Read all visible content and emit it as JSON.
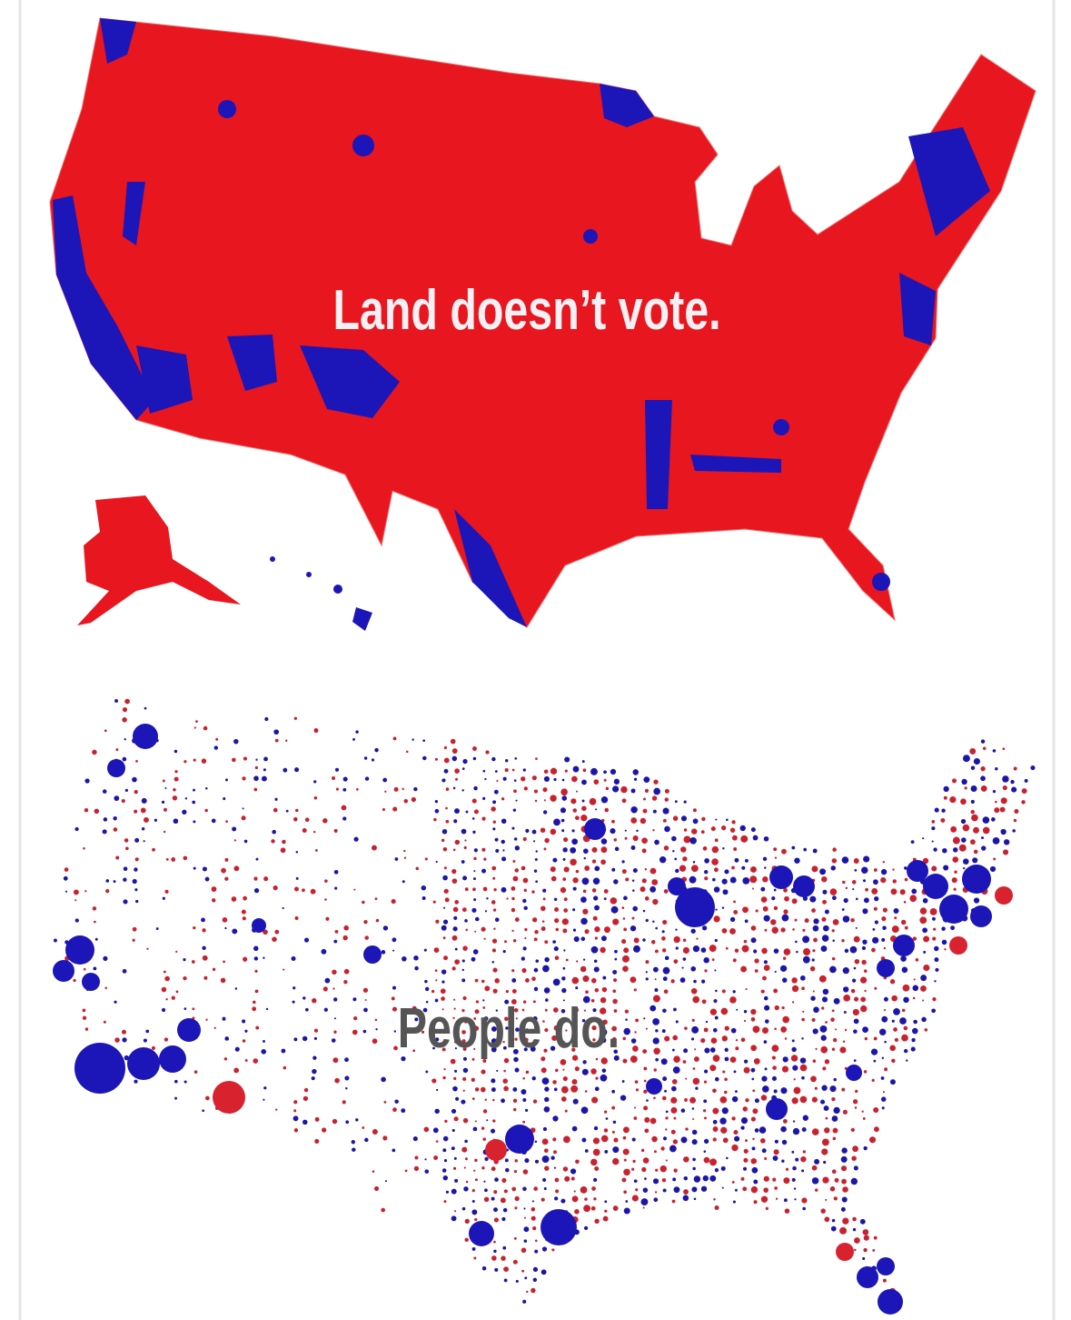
{
  "top_map": {
    "caption": "Land doesn’t vote."
  },
  "bottom_map": {
    "caption": "People do."
  }
}
